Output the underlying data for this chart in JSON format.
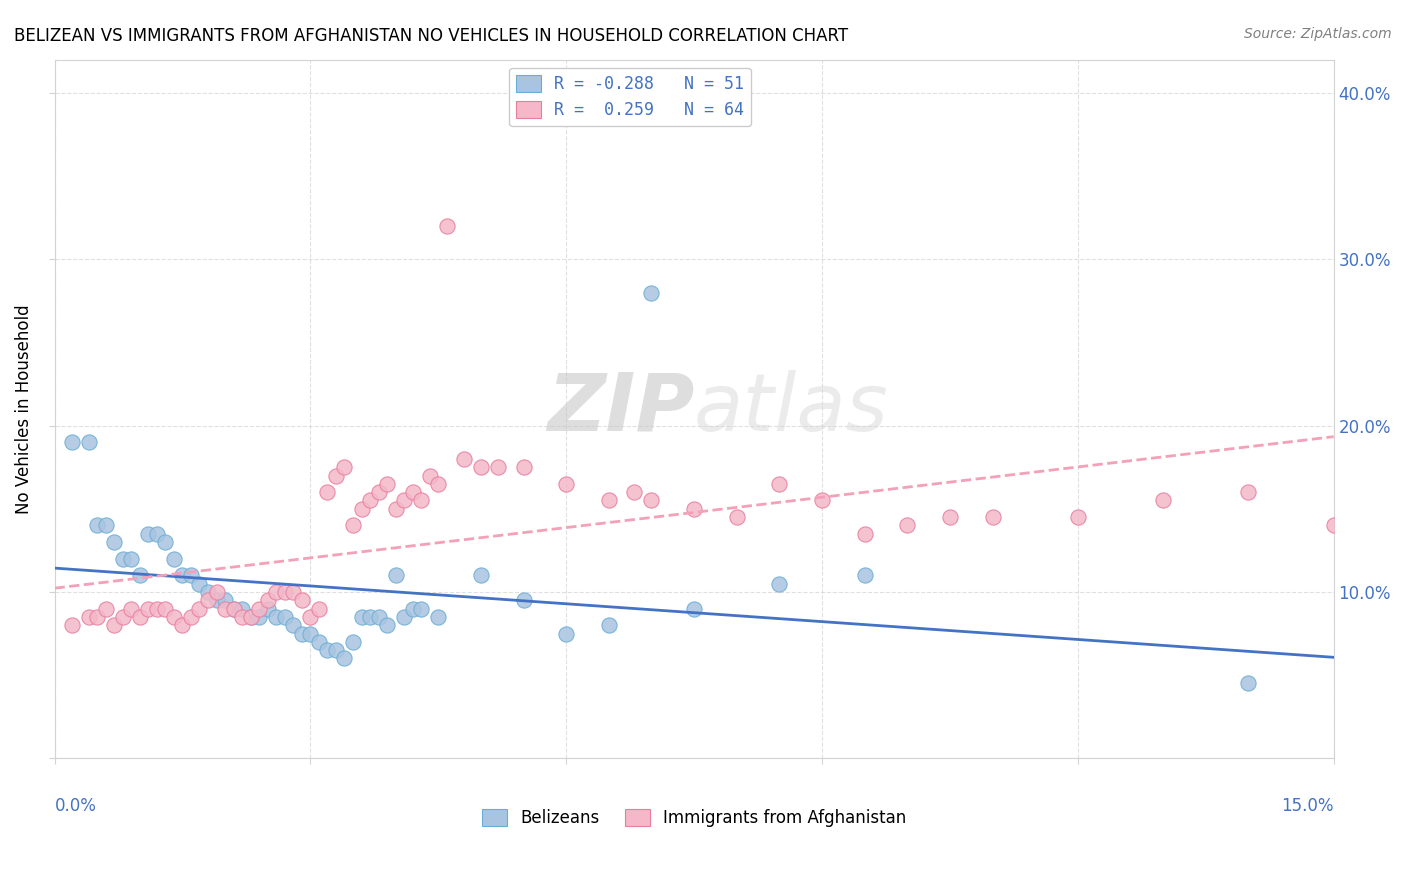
{
  "title": "BELIZEAN VS IMMIGRANTS FROM AFGHANISTAN NO VEHICLES IN HOUSEHOLD CORRELATION CHART",
  "source": "Source: ZipAtlas.com",
  "ylabel": "No Vehicles in Household",
  "yticks": [
    0.0,
    0.1,
    0.2,
    0.3,
    0.4
  ],
  "ytick_labels": [
    "",
    "10.0%",
    "20.0%",
    "30.0%",
    "40.0%"
  ],
  "xmin": 0.0,
  "xmax": 0.15,
  "ymin": 0.0,
  "ymax": 0.42,
  "series1_name": "Belizeans",
  "series1_color": "#a8c4e0",
  "series1_edge": "#6aaed6",
  "series1_R": -0.288,
  "series1_N": 51,
  "series1_line_color": "#4472c4",
  "series2_name": "Immigrants from Afghanistan",
  "series2_color": "#f4b8c8",
  "series2_edge": "#e87da0",
  "series2_R": 0.259,
  "series2_N": 64,
  "series2_line_color": "#f4a0b8",
  "watermark_zip": "ZIP",
  "watermark_atlas": "atlas",
  "belizeans_x": [
    0.002,
    0.004,
    0.005,
    0.006,
    0.007,
    0.008,
    0.009,
    0.01,
    0.011,
    0.012,
    0.013,
    0.014,
    0.015,
    0.016,
    0.017,
    0.018,
    0.019,
    0.02,
    0.021,
    0.022,
    0.023,
    0.024,
    0.025,
    0.026,
    0.027,
    0.028,
    0.029,
    0.03,
    0.031,
    0.032,
    0.033,
    0.034,
    0.035,
    0.036,
    0.037,
    0.038,
    0.039,
    0.04,
    0.041,
    0.042,
    0.043,
    0.045,
    0.05,
    0.055,
    0.06,
    0.065,
    0.07,
    0.075,
    0.085,
    0.095,
    0.14
  ],
  "belizeans_y": [
    0.19,
    0.19,
    0.14,
    0.14,
    0.13,
    0.12,
    0.12,
    0.11,
    0.135,
    0.135,
    0.13,
    0.12,
    0.11,
    0.11,
    0.105,
    0.1,
    0.095,
    0.095,
    0.09,
    0.09,
    0.085,
    0.085,
    0.09,
    0.085,
    0.085,
    0.08,
    0.075,
    0.075,
    0.07,
    0.065,
    0.065,
    0.06,
    0.07,
    0.085,
    0.085,
    0.085,
    0.08,
    0.11,
    0.085,
    0.09,
    0.09,
    0.085,
    0.11,
    0.095,
    0.075,
    0.08,
    0.28,
    0.09,
    0.105,
    0.11,
    0.045
  ],
  "afghan_x": [
    0.002,
    0.004,
    0.005,
    0.006,
    0.007,
    0.008,
    0.009,
    0.01,
    0.011,
    0.012,
    0.013,
    0.014,
    0.015,
    0.016,
    0.017,
    0.018,
    0.019,
    0.02,
    0.021,
    0.022,
    0.023,
    0.024,
    0.025,
    0.026,
    0.027,
    0.028,
    0.029,
    0.03,
    0.031,
    0.032,
    0.033,
    0.034,
    0.035,
    0.036,
    0.037,
    0.038,
    0.039,
    0.04,
    0.041,
    0.042,
    0.043,
    0.044,
    0.045,
    0.046,
    0.048,
    0.05,
    0.052,
    0.055,
    0.06,
    0.065,
    0.068,
    0.07,
    0.075,
    0.08,
    0.085,
    0.09,
    0.095,
    0.1,
    0.105,
    0.11,
    0.12,
    0.13,
    0.14,
    0.15
  ],
  "afghan_y": [
    0.08,
    0.085,
    0.085,
    0.09,
    0.08,
    0.085,
    0.09,
    0.085,
    0.09,
    0.09,
    0.09,
    0.085,
    0.08,
    0.085,
    0.09,
    0.095,
    0.1,
    0.09,
    0.09,
    0.085,
    0.085,
    0.09,
    0.095,
    0.1,
    0.1,
    0.1,
    0.095,
    0.085,
    0.09,
    0.16,
    0.17,
    0.175,
    0.14,
    0.15,
    0.155,
    0.16,
    0.165,
    0.15,
    0.155,
    0.16,
    0.155,
    0.17,
    0.165,
    0.32,
    0.18,
    0.175,
    0.175,
    0.175,
    0.165,
    0.155,
    0.16,
    0.155,
    0.15,
    0.145,
    0.165,
    0.155,
    0.135,
    0.14,
    0.145,
    0.145,
    0.145,
    0.155,
    0.16,
    0.14
  ]
}
